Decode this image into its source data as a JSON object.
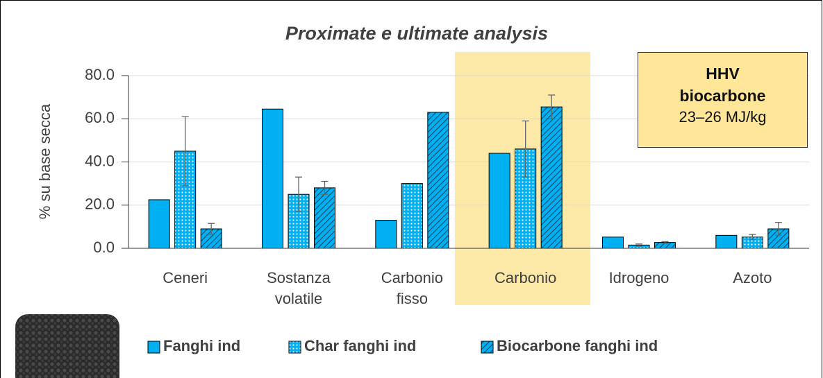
{
  "chart_data": {
    "type": "bar",
    "title": "Proximate e ultimate analysis",
    "y_label": "% su base secca",
    "categories": [
      "Ceneri",
      "Sostanza volatile",
      "Carbonio fisso",
      "Carbonio",
      "Idrogeno",
      "Azoto"
    ],
    "series": [
      {
        "name": "Fanghi ind",
        "color": "#00b0f0",
        "pattern": "solid",
        "values": [
          22.5,
          64.5,
          13,
          44,
          5.2,
          6
        ],
        "errors": [
          null,
          null,
          null,
          null,
          null,
          null
        ]
      },
      {
        "name": "Char fanghi ind",
        "color": "#00b0f0",
        "pattern": "dots",
        "values": [
          45,
          25,
          30,
          46,
          1.5,
          5.2
        ],
        "errors": [
          16,
          8,
          null,
          13,
          0.5,
          1.2
        ]
      },
      {
        "name": "Biocarbone fanghi ind",
        "color": "#00b0f0",
        "pattern": "hatch",
        "values": [
          9,
          28,
          63,
          65.5,
          2.7,
          9
        ],
        "errors": [
          2.5,
          3,
          null,
          5.5,
          0.4,
          3
        ]
      }
    ],
    "ylim": [
      0,
      80
    ],
    "yticks": [
      {
        "value": 0,
        "label": "0.0"
      },
      {
        "value": 20,
        "label": "20.0"
      },
      {
        "value": 40,
        "label": "40.0"
      },
      {
        "value": 60,
        "label": "60.0"
      },
      {
        "value": 80,
        "label": "80.0"
      }
    ],
    "grid": true,
    "annotation": {
      "title": "HHV biocarbone",
      "text": "23–26 MJ/kg"
    }
  }
}
